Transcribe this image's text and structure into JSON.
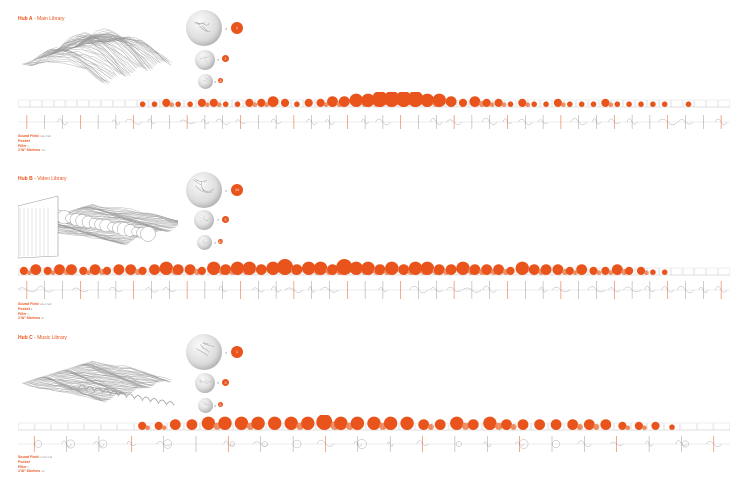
{
  "hubs": [
    {
      "code": "Hub A",
      "name": "Main Library",
      "counts": [
        "1",
        "2",
        "5"
      ],
      "legend": [
        {
          "label": "Sound Field",
          "note": "main hall"
        },
        {
          "label": "Pocket",
          "note": ""
        },
        {
          "label": "Filler",
          "note": "c"
        },
        {
          "label": "1'/8\" Shelves",
          "note": "mh"
        }
      ],
      "row_strip": [
        0,
        0,
        0,
        0,
        0,
        0,
        0,
        0,
        0,
        0,
        1,
        1,
        2,
        1,
        1,
        2,
        2,
        1,
        1,
        2,
        2,
        3,
        2,
        1,
        2,
        2,
        3,
        3,
        4,
        4,
        5,
        5,
        5,
        5,
        4,
        4,
        3,
        2,
        3,
        2,
        2,
        1,
        2,
        1,
        1,
        2,
        1,
        1,
        1,
        2,
        1,
        1,
        1,
        1,
        1,
        0,
        1,
        0,
        0,
        0
      ],
      "row_height": 18,
      "sections": 40
    },
    {
      "code": "Hub B",
      "name": "Video Library",
      "counts": [
        "14",
        "3",
        "10"
      ],
      "legend": [
        {
          "label": "Sound Field",
          "note": "video hall"
        },
        {
          "label": "Pocket",
          "note": "2"
        },
        {
          "label": "Filler",
          "note": "c"
        },
        {
          "label": "1'/8\" Shelves",
          "note": "vb"
        }
      ],
      "row_strip": [
        2,
        3,
        2,
        3,
        3,
        2,
        3,
        2,
        3,
        3,
        2,
        3,
        4,
        3,
        3,
        2,
        4,
        3,
        4,
        4,
        3,
        4,
        5,
        3,
        4,
        4,
        3,
        5,
        4,
        4,
        3,
        4,
        3,
        4,
        4,
        3,
        3,
        4,
        3,
        3,
        3,
        2,
        4,
        3,
        3,
        3,
        2,
        3,
        2,
        2,
        3,
        2,
        2,
        1,
        1,
        0,
        0,
        0,
        0,
        0
      ],
      "row_height": 22,
      "sections": 40
    },
    {
      "code": "Hub C",
      "name": "Music Library",
      "counts": [
        "1",
        "3",
        "5"
      ],
      "legend": [
        {
          "label": "Sound Field",
          "note": "music hall"
        },
        {
          "label": "Pocket",
          "note": ""
        },
        {
          "label": "Filler",
          "note": "c"
        },
        {
          "label": "1'/8\" Shelves",
          "note": "mc"
        }
      ],
      "row_strip": [
        0,
        0,
        0,
        0,
        0,
        0,
        0,
        2,
        2,
        3,
        3,
        4,
        4,
        4,
        4,
        4,
        4,
        4,
        5,
        4,
        4,
        4,
        4,
        4,
        3,
        3,
        4,
        3,
        4,
        3,
        3,
        3,
        3,
        3,
        3,
        3,
        2,
        2,
        2,
        1,
        0,
        0,
        0
      ],
      "row_height": 18,
      "sections": 22
    }
  ],
  "colors": {
    "accent": "#e8541c",
    "line": "#9a9a9a",
    "light": "#c8c8c8"
  }
}
